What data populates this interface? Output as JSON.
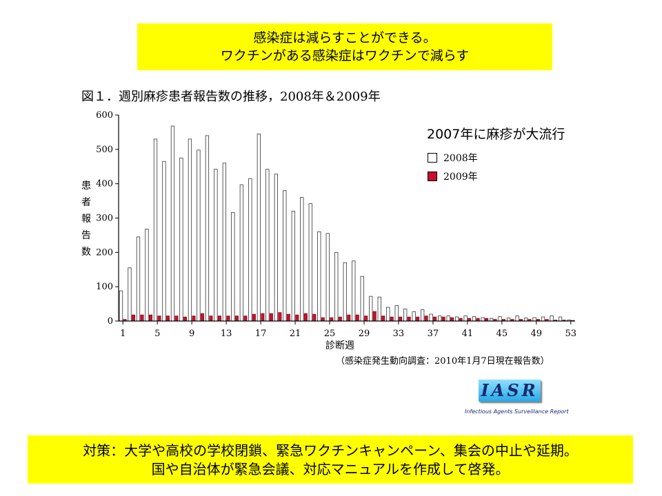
{
  "header": {
    "line1": "感染症は減らすことができる。",
    "line2": "ワクチンがある感染症はワクチンで減らす"
  },
  "footer": {
    "line1": "対策：大学や高校の学校閉鎖、緊急ワクチンキャンペーン、集会の中止や延期。",
    "line2": "国や自治体が緊急会議、対応マニュアルを作成して啓発。"
  },
  "figure": {
    "annotation": "2007年に麻疹が大流行",
    "source_note": "（感染症発生動向調査：2010年1月7日現在報告数）",
    "logo_text": "IASR",
    "logo_caption": "Infectious Agents Surveillance Report"
  },
  "chart_data": {
    "type": "bar",
    "title": "図１．週別麻疹患者報告数の推移，2008年＆2009年",
    "xlabel": "診断週",
    "ylabel": "患者報告数",
    "ylim": [
      0,
      600
    ],
    "yticks": [
      0,
      100,
      200,
      300,
      400,
      500,
      600
    ],
    "xticks": [
      1,
      5,
      9,
      13,
      17,
      21,
      25,
      29,
      33,
      37,
      41,
      45,
      49,
      53
    ],
    "legend_position": "top-right",
    "grid": false,
    "categories": [
      1,
      2,
      3,
      4,
      5,
      6,
      7,
      8,
      9,
      10,
      11,
      12,
      13,
      14,
      15,
      16,
      17,
      18,
      19,
      20,
      21,
      22,
      23,
      24,
      25,
      26,
      27,
      28,
      29,
      30,
      31,
      32,
      33,
      34,
      35,
      36,
      37,
      38,
      39,
      40,
      41,
      42,
      43,
      44,
      45,
      46,
      47,
      48,
      49,
      50,
      51,
      52,
      53
    ],
    "series": [
      {
        "name": "2008年",
        "color": "#ffffff",
        "values": [
          88,
          155,
          245,
          268,
          530,
          465,
          568,
          475,
          530,
          498,
          540,
          442,
          460,
          316,
          397,
          415,
          545,
          442,
          428,
          380,
          320,
          360,
          342,
          260,
          255,
          200,
          170,
          175,
          130,
          72,
          70,
          40,
          45,
          35,
          27,
          33,
          20,
          15,
          15,
          12,
          15,
          13,
          10,
          8,
          13,
          9,
          15,
          9,
          10,
          12,
          15,
          12,
          3
        ]
      },
      {
        "name": "2009年",
        "color": "#c8102e",
        "values": [
          5,
          18,
          18,
          18,
          15,
          15,
          15,
          12,
          15,
          22,
          15,
          15,
          15,
          15,
          15,
          20,
          22,
          22,
          25,
          20,
          18,
          22,
          20,
          10,
          10,
          12,
          18,
          18,
          15,
          28,
          15,
          12,
          12,
          12,
          12,
          15,
          12,
          12,
          10,
          8,
          8,
          8,
          8,
          5,
          5,
          5,
          5,
          5,
          5,
          5,
          3,
          3,
          2
        ]
      }
    ]
  }
}
